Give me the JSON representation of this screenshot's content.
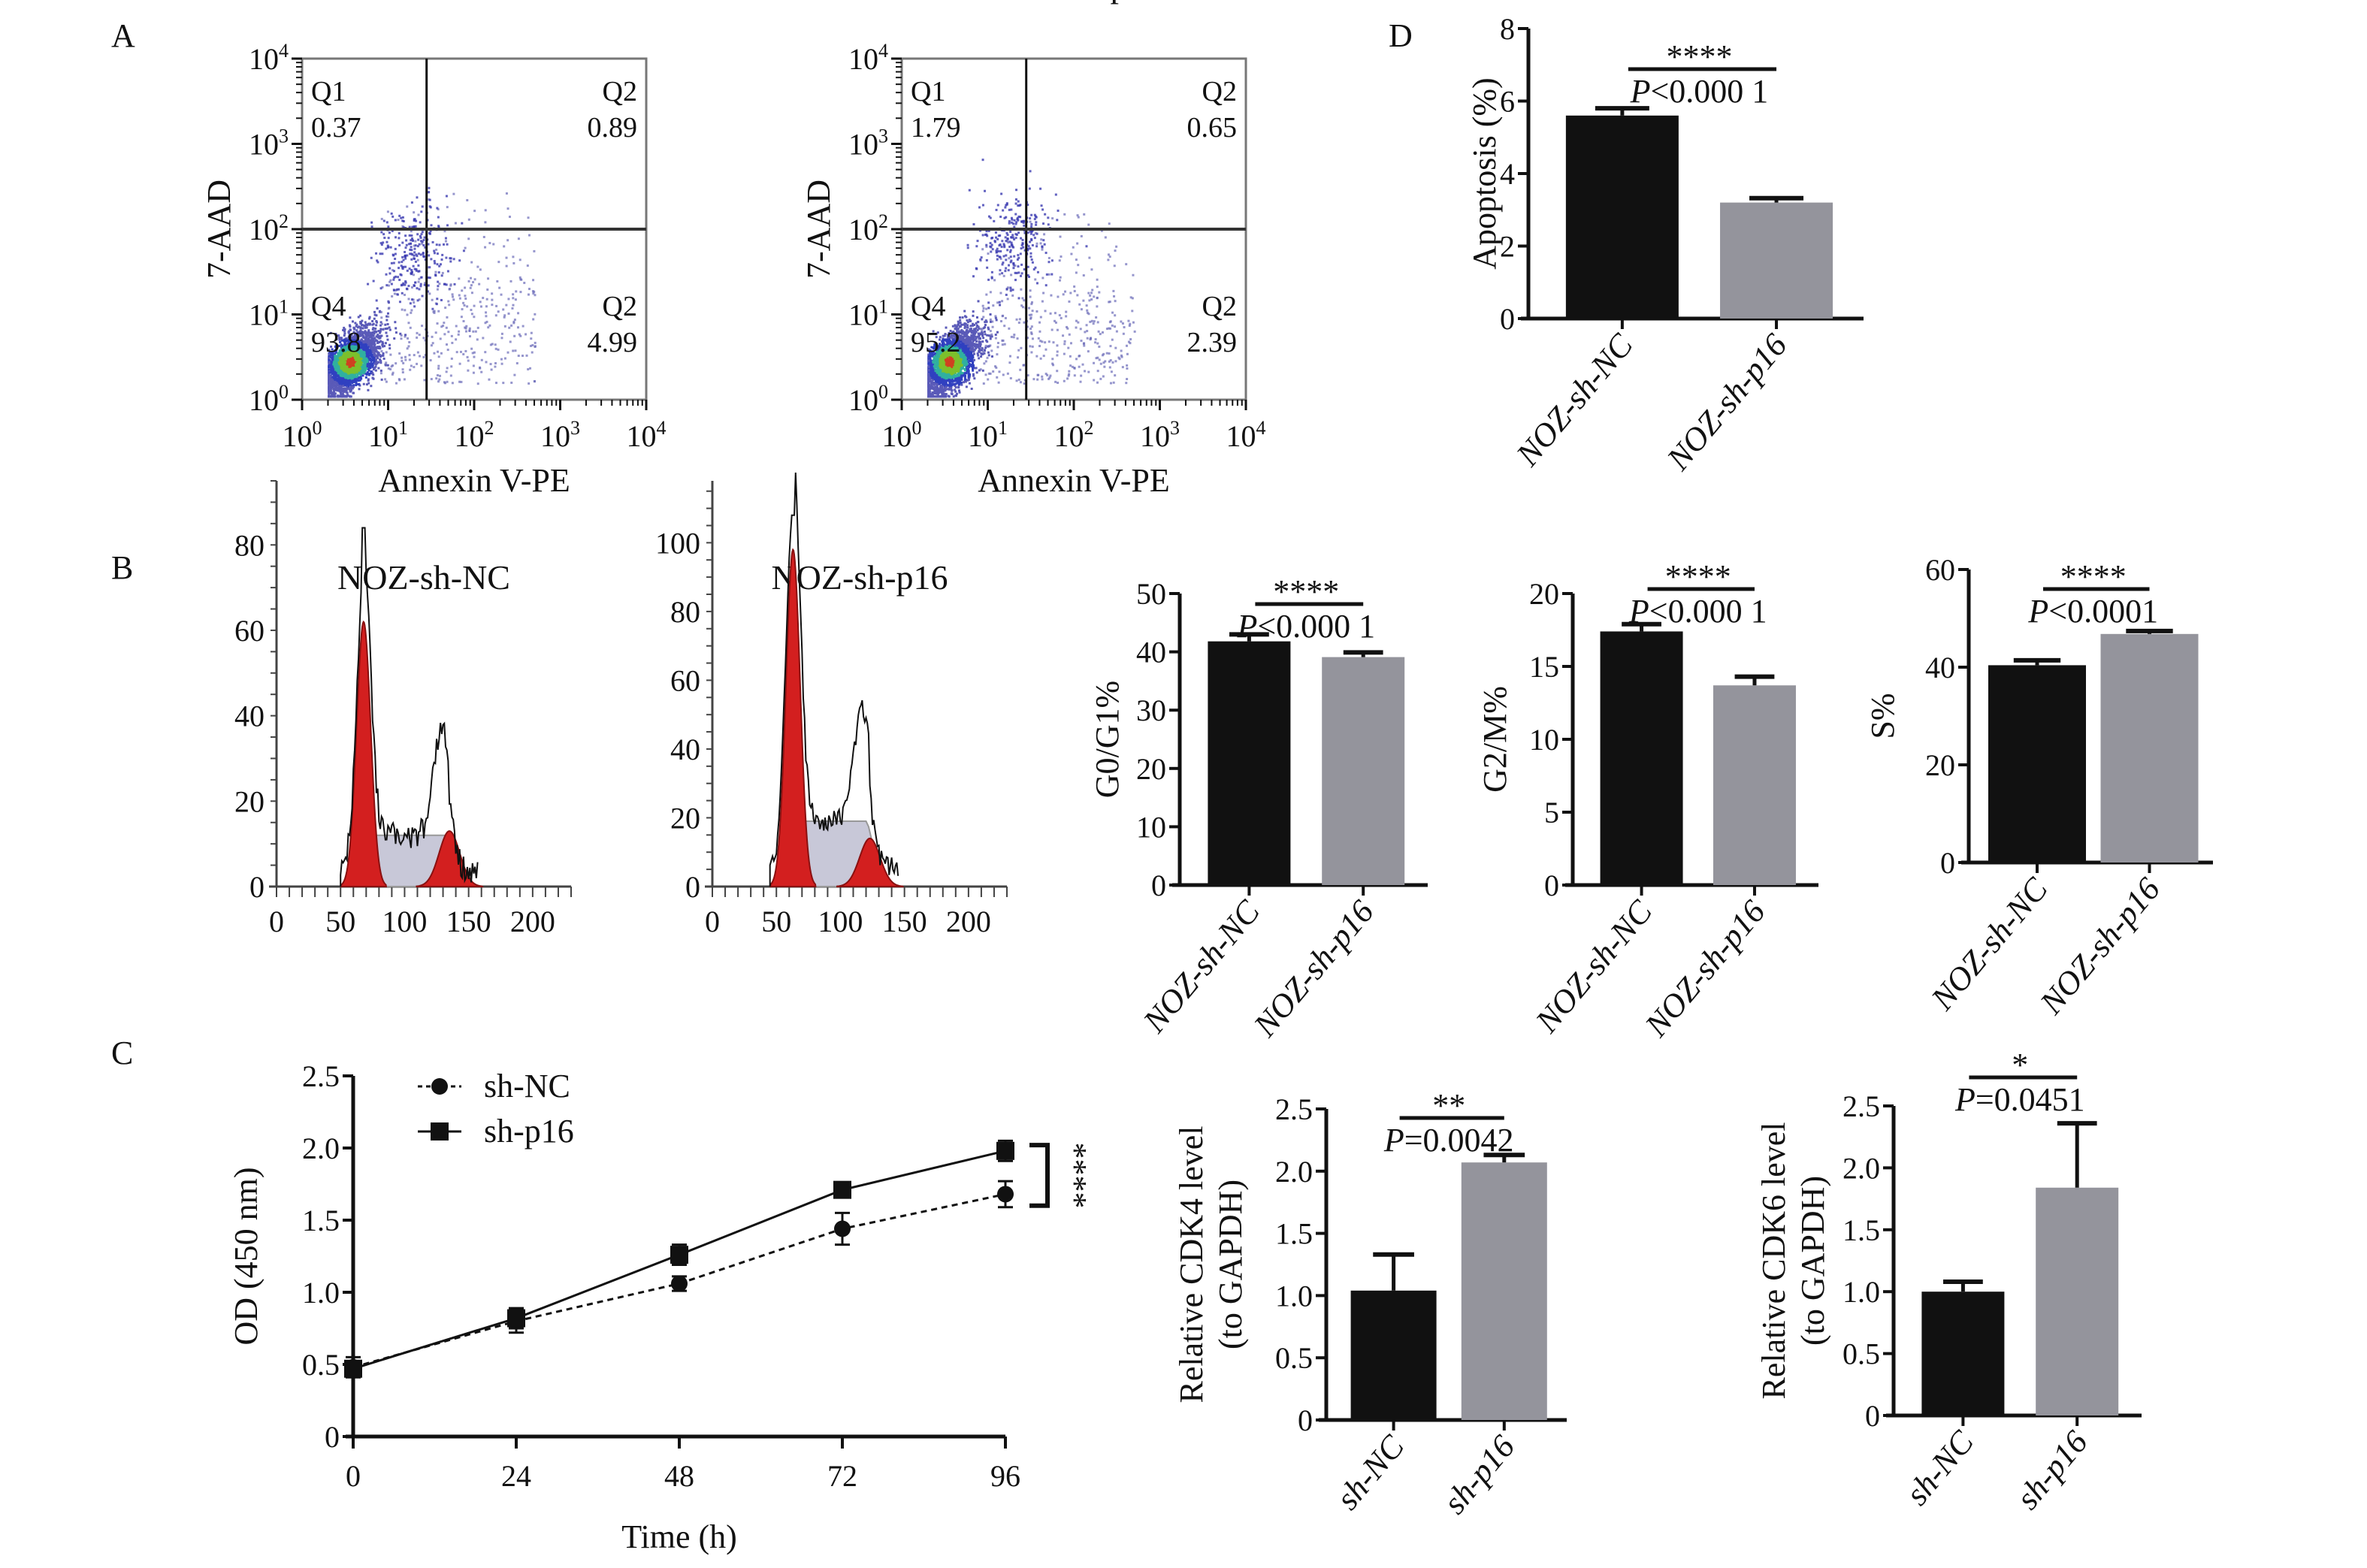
{
  "figure": {
    "panel_letters": [
      "A",
      "B",
      "C",
      "D"
    ]
  },
  "chart_data": [
    {
      "id": "A1",
      "type": "scatter",
      "subtype": "flow-cytometry-density",
      "title": "NOZ-sh-NC",
      "xlabel": "Annexin V-PE",
      "ylabel": "7-AAD",
      "xscale": "log",
      "yscale": "log",
      "xlim": [
        1,
        10000
      ],
      "ylim": [
        1,
        10000
      ],
      "xticks": [
        "10^0",
        "10^1",
        "10^2",
        "10^3",
        "10^4"
      ],
      "yticks": [
        "10^0",
        "10^1",
        "10^2",
        "10^3",
        "10^4"
      ],
      "gate_x": 28,
      "gate_y": 100,
      "quadrants": [
        {
          "name": "Q1",
          "value": "0.37",
          "pos": "top-left"
        },
        {
          "name": "Q2",
          "value": "0.89",
          "pos": "top-right"
        },
        {
          "name": "Q4",
          "value": "93.8",
          "pos": "bottom-left"
        },
        {
          "name": "Q2",
          "value": "4.99",
          "pos": "bottom-right"
        }
      ]
    },
    {
      "id": "A2",
      "type": "scatter",
      "subtype": "flow-cytometry-density",
      "title": "NOZ-sh-p16",
      "xlabel": "Annexin V-PE",
      "ylabel": "7-AAD",
      "xscale": "log",
      "yscale": "log",
      "xlim": [
        1,
        10000
      ],
      "ylim": [
        1,
        10000
      ],
      "xticks": [
        "10^0",
        "10^1",
        "10^2",
        "10^3",
        "10^4"
      ],
      "yticks": [
        "10^0",
        "10^1",
        "10^2",
        "10^3",
        "10^4"
      ],
      "gate_x": 28,
      "gate_y": 100,
      "quadrants": [
        {
          "name": "Q1",
          "value": "1.79",
          "pos": "top-left"
        },
        {
          "name": "Q2",
          "value": "0.65",
          "pos": "top-right"
        },
        {
          "name": "Q4",
          "value": "95.2",
          "pos": "bottom-left"
        },
        {
          "name": "Q2",
          "value": "2.39",
          "pos": "bottom-right"
        }
      ]
    },
    {
      "id": "D",
      "type": "bar",
      "categories": [
        "NOZ-sh-NC",
        "NOZ-sh-p16"
      ],
      "values": [
        5.6,
        3.2
      ],
      "errors": [
        0.2,
        0.12
      ],
      "ylabel": "Apoptosis (%)",
      "ylim": [
        0,
        8
      ],
      "yticks": [
        0,
        2,
        4,
        6,
        8
      ],
      "significance": "****",
      "pvalue": {
        "P": "P",
        "text": "<0.000 1"
      },
      "colors": [
        "#111111",
        "#94949c"
      ]
    },
    {
      "id": "B1",
      "type": "area",
      "subtype": "cell-cycle-histogram",
      "title": "NOZ-sh-NC",
      "xlim": [
        0,
        230
      ],
      "ylim": [
        0,
        95
      ],
      "xticks": [
        0,
        50,
        100,
        150,
        200
      ],
      "yticks": [
        0,
        20,
        40,
        60,
        80
      ],
      "g1_peak": {
        "x": 68,
        "y": 62
      },
      "g2_peak": {
        "x": 135,
        "y": 13
      },
      "s_phase_level": 12,
      "raw_max": 84
    },
    {
      "id": "B2",
      "type": "area",
      "subtype": "cell-cycle-histogram",
      "title": "NOZ-sh-p16",
      "xlim": [
        0,
        230
      ],
      "ylim": [
        0,
        118
      ],
      "xticks": [
        0,
        50,
        100,
        150,
        200
      ],
      "yticks": [
        0,
        20,
        40,
        60,
        80,
        100
      ],
      "g1_peak": {
        "x": 63,
        "y": 98
      },
      "g2_peak": {
        "x": 123,
        "y": 14
      },
      "s_phase_level": 19,
      "raw_max": 108
    },
    {
      "id": "B3",
      "type": "bar",
      "categories": [
        "NOZ-sh-NC",
        "NOZ-sh-p16"
      ],
      "values": [
        41.8,
        39.1
      ],
      "errors": [
        1.2,
        0.8
      ],
      "ylabel": "G0/G1%",
      "ylim": [
        0,
        50
      ],
      "yticks": [
        0,
        10,
        20,
        30,
        40,
        50
      ],
      "significance": "****",
      "pvalue": {
        "P": "P",
        "text": "<0.000 1"
      },
      "colors": [
        "#111111",
        "#94949c"
      ]
    },
    {
      "id": "B4",
      "type": "bar",
      "categories": [
        "NOZ-sh-NC",
        "NOZ-sh-p16"
      ],
      "values": [
        17.4,
        13.7
      ],
      "errors": [
        0.5,
        0.6
      ],
      "ylabel": "G2/M%",
      "ylim": [
        0,
        20
      ],
      "yticks": [
        0,
        5,
        10,
        15,
        20
      ],
      "significance": "****",
      "pvalue": {
        "P": "P",
        "text": "<0.000 1"
      },
      "colors": [
        "#111111",
        "#94949c"
      ]
    },
    {
      "id": "B5",
      "type": "bar",
      "categories": [
        "NOZ-sh-NC",
        "NOZ-sh-p16"
      ],
      "values": [
        40.4,
        46.8
      ],
      "errors": [
        1.0,
        0.6
      ],
      "ylabel": "S%",
      "ylim": [
        0,
        60
      ],
      "yticks": [
        0,
        20,
        40,
        60
      ],
      "significance": "****",
      "pvalue": {
        "P": "P",
        "text": "<0.0001"
      },
      "colors": [
        "#111111",
        "#94949c"
      ]
    },
    {
      "id": "C",
      "type": "line",
      "x": [
        0,
        24,
        48,
        72,
        96
      ],
      "xticks": [
        0,
        24,
        48,
        72,
        96
      ],
      "xlabel": "Time (h)",
      "ylabel": "OD (450 nm)",
      "xlim": [
        0,
        96
      ],
      "ylim": [
        0,
        2.5
      ],
      "yticks": [
        "0",
        "0.5",
        "1.0",
        "1.5",
        "2.0",
        "2.5"
      ],
      "series": [
        {
          "name": "sh-NC",
          "marker": "circle",
          "style": "dashed",
          "values": [
            0.48,
            0.8,
            1.06,
            1.44,
            1.68
          ],
          "errors": [
            0.07,
            0.08,
            0.05,
            0.11,
            0.09
          ]
        },
        {
          "name": "sh-p16",
          "marker": "square",
          "style": "solid",
          "values": [
            0.47,
            0.82,
            1.26,
            1.71,
            1.98
          ],
          "errors": [
            0.05,
            0.07,
            0.07,
            0.04,
            0.07
          ]
        }
      ],
      "legend": "top-left",
      "significance": "****"
    },
    {
      "id": "C2",
      "type": "bar",
      "categories": [
        "sh-NC",
        "sh-p16"
      ],
      "values": [
        1.04,
        2.07
      ],
      "errors": [
        0.29,
        0.06
      ],
      "ylabel": "Relative CDK4 level",
      "ylabel2": "(to GAPDH)",
      "ylim": [
        0,
        2.5
      ],
      "yticks": [
        "0",
        "0.5",
        "1.0",
        "1.5",
        "2.0",
        "2.5"
      ],
      "significance": "**",
      "pvalue": {
        "P": "P",
        "text": "=0.0042"
      },
      "colors": [
        "#111111",
        "#94949c"
      ]
    },
    {
      "id": "C3",
      "type": "bar",
      "categories": [
        "sh-NC",
        "sh-p16"
      ],
      "values": [
        1.0,
        1.84
      ],
      "errors": [
        0.08,
        0.52
      ],
      "ylabel": "Relative CDK6 level",
      "ylabel2": "(to GAPDH)",
      "ylim": [
        0,
        2.5
      ],
      "yticks": [
        "0",
        "0.5",
        "1.0",
        "1.5",
        "2.0",
        "2.5"
      ],
      "significance": "*",
      "pvalue": {
        "P": "P",
        "text": "=0.0451"
      },
      "colors": [
        "#111111",
        "#94949c"
      ]
    }
  ]
}
